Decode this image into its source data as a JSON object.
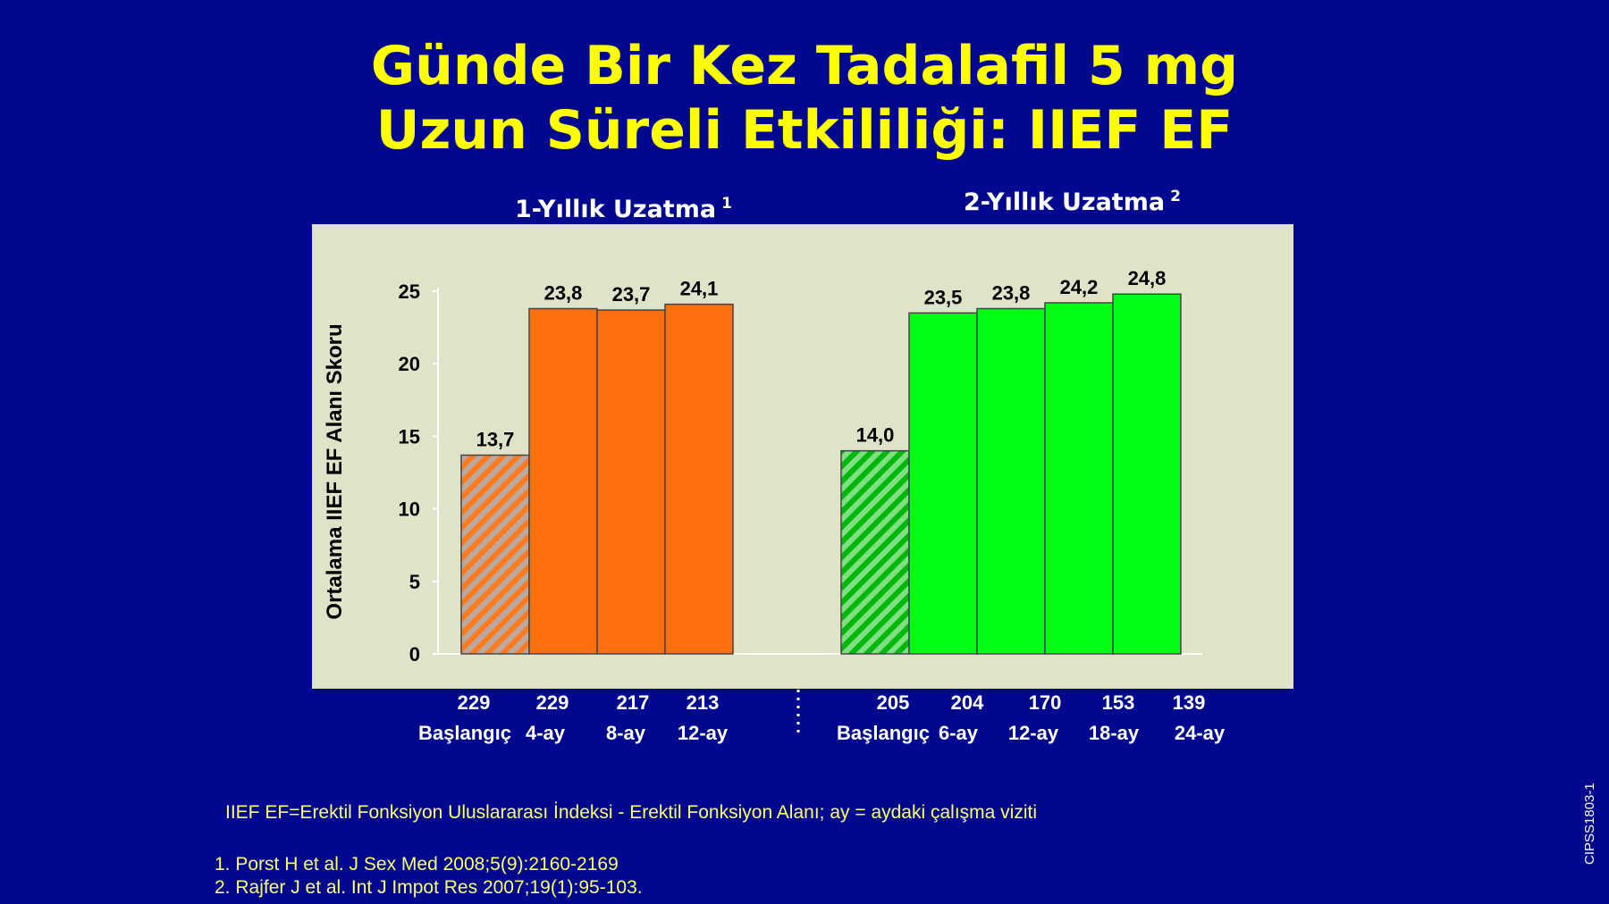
{
  "slide": {
    "title_line1": "Günde Bir Kez Tadalafil 5 mg",
    "title_line2": "Uzun Süreli Etkililiği: IIEF EF",
    "footnote": "IIEF EF=Erektil Fonksiyon Uluslararası İndeksi - Erektil Fonksiyon Alanı; ay = aydaki çalışma viziti",
    "ref1": "1. Porst H et al. J Sex Med 2008;5(9):2160-2169",
    "ref2": "2. Rajfer J et al. Int J Impot Res 2007;19(1):95-103.",
    "code": "CIPSS1803-1"
  },
  "chart_data": {
    "type": "bar",
    "ylabel": "Ortalama IIEF EF Alanı Skoru",
    "ylim": [
      0,
      25
    ],
    "yticks": [
      0,
      5,
      10,
      15,
      20,
      25
    ],
    "grid": false,
    "colors": {
      "panel": "#e1e3c9",
      "group1": "#ff6f0d",
      "group2": "#00ff12",
      "baseline_hatch1": "#ff7b20",
      "baseline_hatch2": "#00b80c"
    },
    "groups": [
      {
        "name": "1-Yıllık Uzatma",
        "sup": "1",
        "categories": [
          "Başlangıç",
          "4-ay",
          "8-ay",
          "12-ay"
        ],
        "values": [
          13.7,
          23.8,
          23.7,
          24.1
        ],
        "value_labels": [
          "13,7",
          "23,8",
          "23,7",
          "24,1"
        ],
        "n": [
          "229",
          "229",
          "217",
          "213"
        ],
        "baseline_hatched": true
      },
      {
        "name": "2-Yıllık Uzatma",
        "sup": "2",
        "categories": [
          "Başlangıç",
          "6-ay",
          "12-ay",
          "18-ay",
          "24-ay"
        ],
        "values": [
          14.0,
          23.5,
          23.8,
          24.2,
          24.8
        ],
        "value_labels": [
          "14,0",
          "23,5",
          "23,8",
          "24,2",
          "24,8"
        ],
        "n": [
          "205",
          "204",
          "170",
          "153",
          "139"
        ],
        "baseline_hatched": true
      }
    ]
  }
}
